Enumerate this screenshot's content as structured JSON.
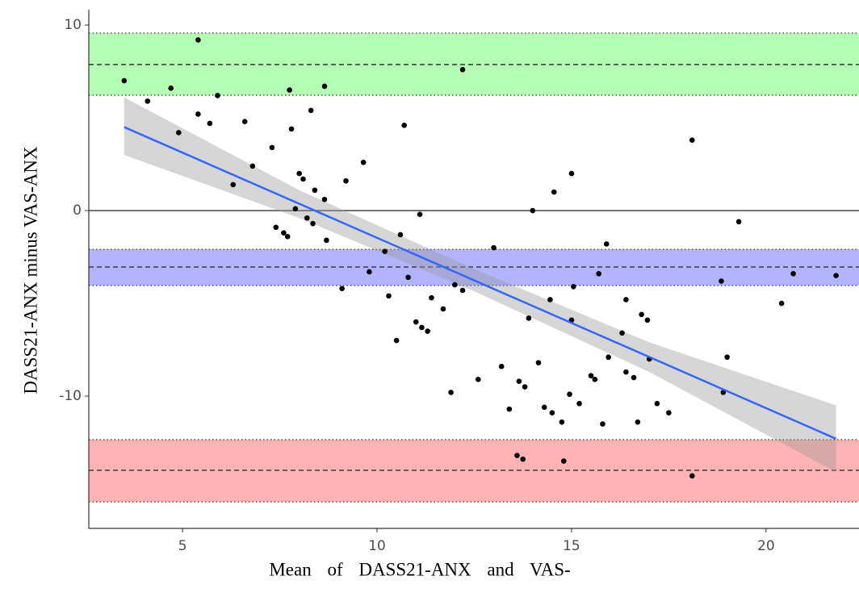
{
  "chart_data": {
    "type": "scatter",
    "x_label": "Mean of DASS21-ANX and VAS-",
    "y_label": "DASS21-ANX minus VAS-ANX",
    "x": [
      3.5,
      4.1,
      4.7,
      4.9,
      5.4,
      5.4,
      5.7,
      5.9,
      6.3,
      6.6,
      6.8,
      7.3,
      7.4,
      7.6,
      7.7,
      7.75,
      7.8,
      7.9,
      8.0,
      8.1,
      8.2,
      8.3,
      8.35,
      8.4,
      8.65,
      8.65,
      8.7,
      9.1,
      9.2,
      9.65,
      9.8,
      10.2,
      10.3,
      10.5,
      10.6,
      10.7,
      10.8,
      11.0,
      11.1,
      11.15,
      11.3,
      11.4,
      11.7,
      11.9,
      12.0,
      12.2,
      12.2,
      12.6,
      13.0,
      13.2,
      13.4,
      13.6,
      13.65,
      13.75,
      13.8,
      13.9,
      14.0,
      14.15,
      14.3,
      14.45,
      14.5,
      14.55,
      14.75,
      14.8,
      14.95,
      15.0,
      15.0,
      15.05,
      15.2,
      15.5,
      15.6,
      15.7,
      15.8,
      15.9,
      15.95,
      16.3,
      16.4,
      16.4,
      16.6,
      16.7,
      16.8,
      16.95,
      17.0,
      17.2,
      17.5,
      18.1,
      18.1,
      18.85,
      18.9,
      19.0,
      19.3,
      20.4,
      20.7,
      21.8
    ],
    "y": [
      7.0,
      5.9,
      6.6,
      4.2,
      9.2,
      5.2,
      4.7,
      6.2,
      1.4,
      4.8,
      2.4,
      3.4,
      -0.9,
      -1.2,
      -1.4,
      6.5,
      4.4,
      0.1,
      2.0,
      1.7,
      -0.4,
      5.4,
      -0.7,
      1.1,
      0.6,
      6.7,
      -1.6,
      -4.2,
      1.6,
      2.6,
      -3.3,
      -2.2,
      -4.6,
      -7.0,
      -1.3,
      4.6,
      -3.6,
      -6.0,
      -0.2,
      -6.3,
      -6.5,
      -4.7,
      -5.3,
      -9.8,
      -4.0,
      7.6,
      -4.3,
      -9.1,
      -2.0,
      -8.4,
      -10.7,
      -13.2,
      -9.2,
      -13.4,
      -9.5,
      -5.8,
      0.0,
      -8.2,
      -10.6,
      -4.8,
      -10.9,
      1.0,
      -11.4,
      -13.5,
      -9.9,
      -5.9,
      2.0,
      -4.1,
      -10.4,
      -8.9,
      -9.1,
      -3.4,
      -11.5,
      -1.8,
      -7.9,
      -6.6,
      -8.7,
      -4.8,
      -9.0,
      -11.4,
      -5.6,
      -5.9,
      -8.0,
      -10.4,
      -10.9,
      3.8,
      -14.3,
      -3.8,
      -9.8,
      -7.9,
      -0.6,
      -5.0,
      -3.4,
      -3.5
    ],
    "point_color": "#000000",
    "xlim": [
      2.59,
      22.39
    ],
    "ylim": [
      -17.13,
      10.83
    ],
    "xticks": [
      5,
      10,
      15,
      20
    ],
    "yticks": [
      -10,
      0,
      10
    ],
    "zero_line": 0,
    "bands": [
      {
        "center": 7.87,
        "lower": 6.22,
        "upper": 9.57,
        "color": "#b3ffb3"
      },
      {
        "center": -3.04,
        "lower": -4.04,
        "upper": -2.09,
        "color": "#b3b3ff"
      },
      {
        "center": -14.0,
        "lower": -15.7,
        "upper": -12.35,
        "color": "#ffb3b3"
      }
    ],
    "fit": {
      "x": [
        3.5,
        21.8
      ],
      "y": [
        4.5,
        -12.3
      ],
      "color": "#3366ff"
    },
    "ci": {
      "x": [
        3.5,
        8,
        12.5,
        17,
        21.8
      ],
      "lower": [
        3.0,
        -0.4,
        -4.35,
        -8.7,
        -14.1
      ],
      "upper": [
        6.1,
        1.1,
        -3.15,
        -7.1,
        -10.5
      ],
      "color": "#999999"
    }
  }
}
